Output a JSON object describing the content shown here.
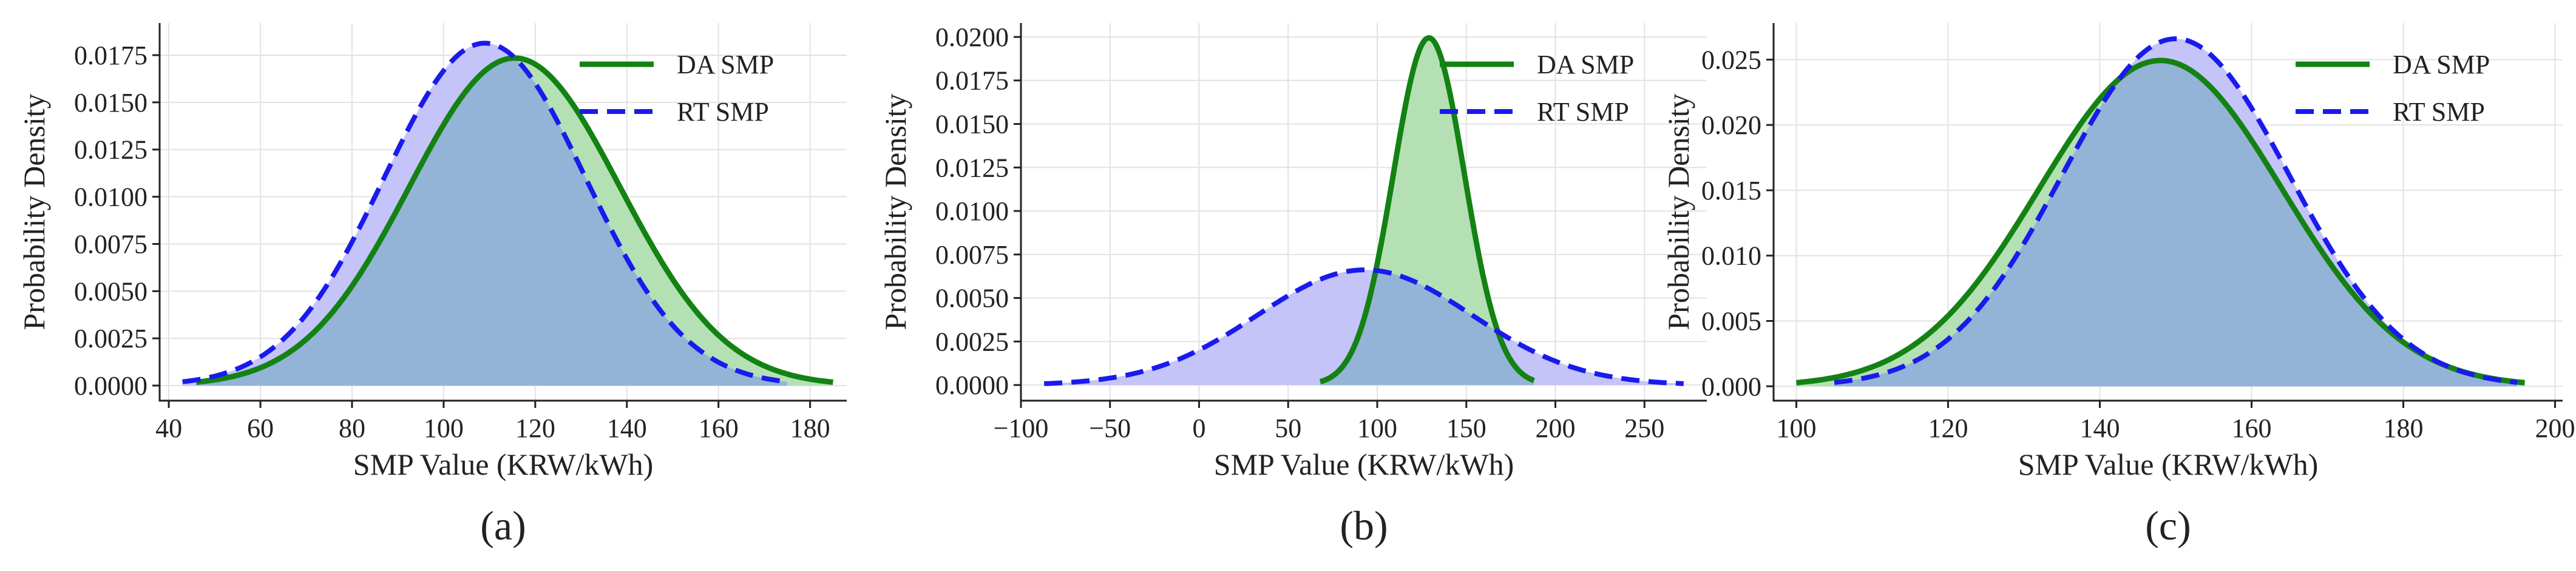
{
  "colors": {
    "da_line": "#138213",
    "rt_line": "#1a1aee",
    "da_fill": "#b4e0b4",
    "rt_fill": "#c4c4f8",
    "overlap_fill": "#93b4d6"
  },
  "chart_data": [
    {
      "type": "area",
      "panel_label": "(a)",
      "xlabel": "SMP Value (KRW/kWh)",
      "ylabel": "Probability Density",
      "grid": true,
      "legend_position": "top-right",
      "xlim": [
        38,
        188
      ],
      "ylim": [
        -0.0008,
        0.0192
      ],
      "x_ticks": [
        40,
        60,
        80,
        100,
        120,
        140,
        160,
        180
      ],
      "x_tick_labels": [
        "40",
        "60",
        "80",
        "100",
        "120",
        "140",
        "160",
        "180"
      ],
      "y_ticks": [
        0,
        0.0025,
        0.005,
        0.0075,
        0.01,
        0.0125,
        0.015,
        0.0175
      ],
      "y_tick_labels": [
        "0.0000",
        "0.0025",
        "0.0050",
        "0.0075",
        "0.0100",
        "0.0125",
        "0.0150",
        "0.0175"
      ],
      "series": [
        {
          "name": "DA SMP",
          "style": "solid",
          "distribution": "normal",
          "mean": 115.5,
          "std": 23.0,
          "x_range": [
            46,
            185
          ]
        },
        {
          "name": "RT SMP",
          "style": "dashed",
          "distribution": "normal",
          "mean": 109.0,
          "std": 22.0,
          "x_range": [
            43,
            175
          ]
        }
      ]
    },
    {
      "type": "area",
      "panel_label": "(b)",
      "xlabel": "SMP Value (KRW/kWh)",
      "ylabel": "Probability Density",
      "grid": true,
      "legend_position": "top-right",
      "xlim": [
        -100,
        285
      ],
      "ylim": [
        -0.0009,
        0.0208
      ],
      "x_ticks": [
        -100,
        -50,
        0,
        50,
        100,
        150,
        200,
        250
      ],
      "x_tick_labels": [
        "−100",
        "−50",
        "0",
        "50",
        "100",
        "150",
        "200",
        "250"
      ],
      "y_ticks": [
        0,
        0.0025,
        0.005,
        0.0075,
        0.01,
        0.0125,
        0.015,
        0.0175,
        0.02
      ],
      "y_tick_labels": [
        "0.0000",
        "0.0025",
        "0.0050",
        "0.0075",
        "0.0100",
        "0.0125",
        "0.0150",
        "0.0175",
        "0.0200"
      ],
      "series": [
        {
          "name": "DA SMP",
          "style": "solid",
          "distribution": "normal",
          "mean": 129.0,
          "std": 20.0,
          "x_range": [
            68,
            188
          ]
        },
        {
          "name": "RT SMP",
          "style": "dashed",
          "distribution": "normal",
          "mean": 93.0,
          "std": 60.3,
          "x_range": [
            -87,
            272
          ]
        }
      ]
    },
    {
      "type": "area",
      "panel_label": "(c)",
      "xlabel": "SMP Value (KRW/kWh)",
      "ylabel": "Probability Density",
      "grid": true,
      "legend_position": "top-right",
      "xlim": [
        97,
        201
      ],
      "ylim": [
        -0.0011,
        0.0278
      ],
      "x_ticks": [
        100,
        120,
        140,
        160,
        180,
        200
      ],
      "x_tick_labels": [
        "100",
        "120",
        "140",
        "160",
        "180",
        "200"
      ],
      "y_ticks": [
        0,
        0.005,
        0.01,
        0.015,
        0.02,
        0.025
      ],
      "y_tick_labels": [
        "0.000",
        "0.005",
        "0.010",
        "0.015",
        "0.020",
        "0.025"
      ],
      "series": [
        {
          "name": "DA SMP",
          "style": "solid",
          "distribution": "normal",
          "mean": 148.0,
          "std": 16.0,
          "x_range": [
            100,
            196
          ]
        },
        {
          "name": "RT SMP",
          "style": "dashed",
          "distribution": "normal",
          "mean": 150.0,
          "std": 15.0,
          "x_range": [
            105,
            195
          ]
        }
      ]
    }
  ]
}
